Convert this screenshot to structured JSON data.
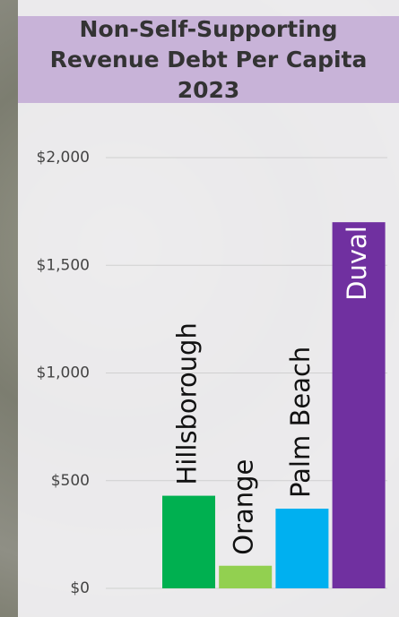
{
  "chart_data": {
    "type": "bar",
    "title": "Non-Self-Supporting Revenue Debt Per Capita 2023",
    "categories": [
      "Hillsborough",
      "Orange",
      "Palm Beach",
      "Duval"
    ],
    "values": [
      430,
      105,
      370,
      1700
    ],
    "colors": [
      "#00b050",
      "#92d050",
      "#00b0f0",
      "#7030a0"
    ],
    "ylim": [
      0,
      2000
    ],
    "yticks": [
      {
        "value": 0,
        "label": "$0"
      },
      {
        "value": 500,
        "label": "$500"
      },
      {
        "value": 1000,
        "label": "$1,000"
      },
      {
        "value": 1500,
        "label": "$1,500"
      },
      {
        "value": 2000,
        "label": "$2,000"
      }
    ],
    "grid": true
  }
}
